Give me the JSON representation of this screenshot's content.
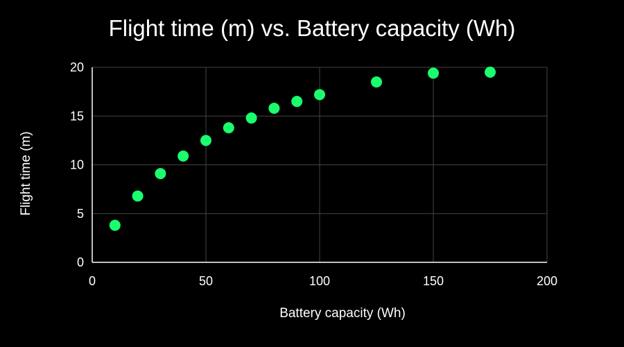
{
  "colors": {
    "background": "#000000",
    "grid": "#444444",
    "axis": "#ffffff",
    "text": "#ffffff",
    "point": "#19ff6e"
  },
  "chart_data": {
    "type": "scatter",
    "title": "Flight time (m) vs. Battery capacity (Wh)",
    "xlabel": "Battery capacity (Wh)",
    "ylabel": "Flight time (m)",
    "xlim": [
      0,
      200
    ],
    "ylim": [
      0,
      20
    ],
    "xticks": [
      0,
      50,
      100,
      150,
      200
    ],
    "yticks": [
      0,
      5,
      10,
      15,
      20
    ],
    "grid": true,
    "legend": "none",
    "series": [
      {
        "color": "#19ff6e",
        "x": [
          10,
          20,
          30,
          40,
          50,
          60,
          70,
          80,
          90,
          100,
          125,
          150,
          175
        ],
        "y": [
          3.8,
          6.8,
          9.1,
          10.9,
          12.5,
          13.8,
          14.8,
          15.8,
          16.5,
          17.2,
          18.5,
          19.4,
          19.5
        ]
      }
    ]
  }
}
